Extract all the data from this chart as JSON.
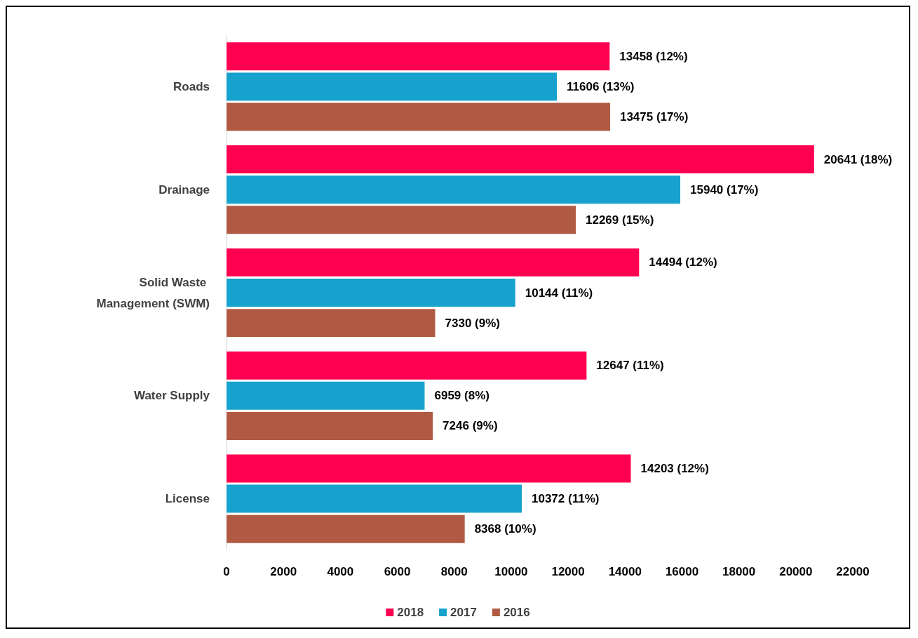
{
  "chart_data": {
    "type": "bar",
    "orientation": "horizontal",
    "categories": [
      "Roads",
      "Drainage",
      "Solid Waste Management (SWM)",
      "Water Supply",
      "License"
    ],
    "series": [
      {
        "name": "2018",
        "color": "#ff0050",
        "values": [
          13458,
          20641,
          14494,
          12647,
          14203
        ],
        "value_labels": [
          "13458 (12%)",
          "20641 (18%)",
          "14494 (12%)",
          "12647 (11%)",
          "14203 (12%)"
        ]
      },
      {
        "name": "2017",
        "color": "#17a2cd",
        "values": [
          11606,
          15940,
          10144,
          6959,
          10372
        ],
        "value_labels": [
          "11606 (13%)",
          "15940 (17%)",
          "10144 (11%)",
          "6959 (8%)",
          "10372 (11%)"
        ]
      },
      {
        "name": "2016",
        "color": "#b05a43",
        "values": [
          13475,
          12269,
          7330,
          7246,
          8368
        ],
        "value_labels": [
          "13475 (17%)",
          "12269 (15%)",
          "7330 (9%)",
          "7246 (9%)",
          "8368 (10%)"
        ]
      }
    ],
    "xlim": [
      0,
      22000
    ],
    "xticks": [
      0,
      2000,
      4000,
      6000,
      8000,
      10000,
      12000,
      14000,
      16000,
      18000,
      20000,
      22000
    ],
    "grid": false,
    "legend": "bottom"
  }
}
